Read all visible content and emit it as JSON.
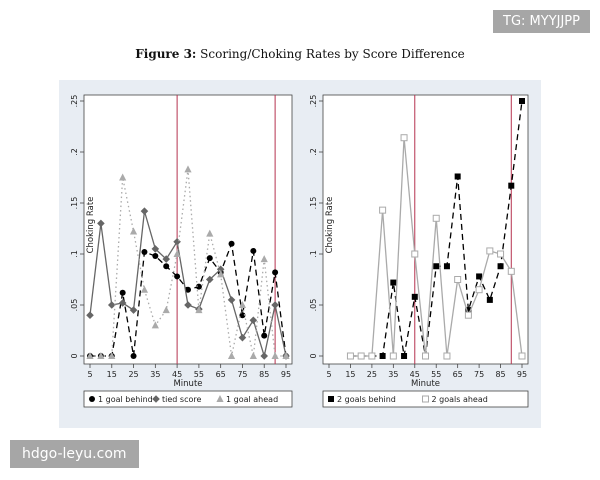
{
  "figure": {
    "title_prefix": "Figure 3:",
    "title_text": "Scoring/Choking Rates by Score Difference"
  },
  "watermarks": {
    "top_right": "TG: MYYJJPP",
    "bottom_left": "hdgo-leyu.com"
  },
  "colors": {
    "panel_bg": "#e8edf3",
    "plot_bg": "#ffffff",
    "vline": "#b5334f",
    "black_series": "#000000",
    "dark_grey_series": "#666666",
    "light_grey_series": "#aaaaaa"
  },
  "chart_data": [
    {
      "type": "line",
      "ylabel": "Choking Rate",
      "xlabel": "Minute",
      "xlim": [
        5,
        95
      ],
      "ylim": [
        0,
        0.25
      ],
      "xticks": [
        "5",
        "15",
        "25",
        "35",
        "45",
        "55",
        "65",
        "75",
        "85",
        "95"
      ],
      "yticks": [
        "0",
        ".05",
        ".1",
        ".15",
        ".2",
        ".25"
      ],
      "vlines": [
        45,
        90
      ],
      "grid": false,
      "legend_position": "bottom",
      "x": [
        5,
        10,
        15,
        20,
        25,
        30,
        35,
        40,
        45,
        50,
        55,
        60,
        65,
        70,
        75,
        80,
        85,
        90,
        95
      ],
      "series": [
        {
          "name": "1 goal behind",
          "marker": "circle",
          "dash": "6,4",
          "color": "#000000",
          "values": [
            0,
            0,
            0,
            0.062,
            0,
            0.102,
            0.098,
            0.088,
            0.078,
            0.065,
            0.068,
            0.096,
            0.082,
            0.11,
            0.04,
            0.103,
            0.02,
            0.082,
            0
          ]
        },
        {
          "name": "tied score",
          "marker": "diamond",
          "dash": "",
          "color": "#666666",
          "values": [
            0.04,
            0.13,
            0.05,
            0.052,
            0.045,
            0.142,
            0.105,
            0.095,
            0.112,
            0.05,
            0.046,
            0.075,
            0.085,
            0.055,
            0.018,
            0.035,
            0,
            0.05,
            0
          ]
        },
        {
          "name": "1 goal ahead",
          "marker": "triangle",
          "dash": "1.5,3",
          "color": "#aaaaaa",
          "values": [
            0,
            0,
            0,
            0.175,
            0.122,
            0.065,
            0.03,
            0.045,
            0.1,
            0.183,
            0.045,
            0.12,
            0.08,
            0,
            0.05,
            0,
            0.095,
            0,
            0
          ]
        }
      ]
    },
    {
      "type": "line",
      "ylabel": "Choking Rate",
      "xlabel": "Minute",
      "xlim": [
        5,
        95
      ],
      "ylim": [
        0,
        0.25
      ],
      "xticks": [
        "5",
        "15",
        "25",
        "35",
        "45",
        "55",
        "65",
        "75",
        "85",
        "95"
      ],
      "yticks": [
        "0",
        ".05",
        ".1",
        ".15",
        ".2",
        ".25"
      ],
      "vlines": [
        45,
        90
      ],
      "grid": false,
      "legend_position": "bottom",
      "x": [
        15,
        20,
        25,
        30,
        35,
        40,
        45,
        50,
        55,
        60,
        65,
        70,
        75,
        80,
        85,
        90,
        95
      ],
      "series": [
        {
          "name": "2 goals behind",
          "marker": "square",
          "dash": "6,4",
          "color": "#000000",
          "values": [
            0,
            0,
            0,
            0,
            0.072,
            0,
            0.058,
            0,
            0.088,
            0.088,
            0.176,
            0.045,
            0.078,
            0.055,
            0.088,
            0.167,
            0.25
          ]
        },
        {
          "name": "2 goals ahead",
          "marker": "square-open",
          "dash": "",
          "color": "#aaaaaa",
          "values": [
            0,
            0,
            0,
            0.143,
            0,
            0.214,
            0.1,
            0,
            0.135,
            0,
            0.075,
            0.04,
            0.065,
            0.103,
            0.1,
            0.083,
            0
          ]
        }
      ]
    }
  ]
}
